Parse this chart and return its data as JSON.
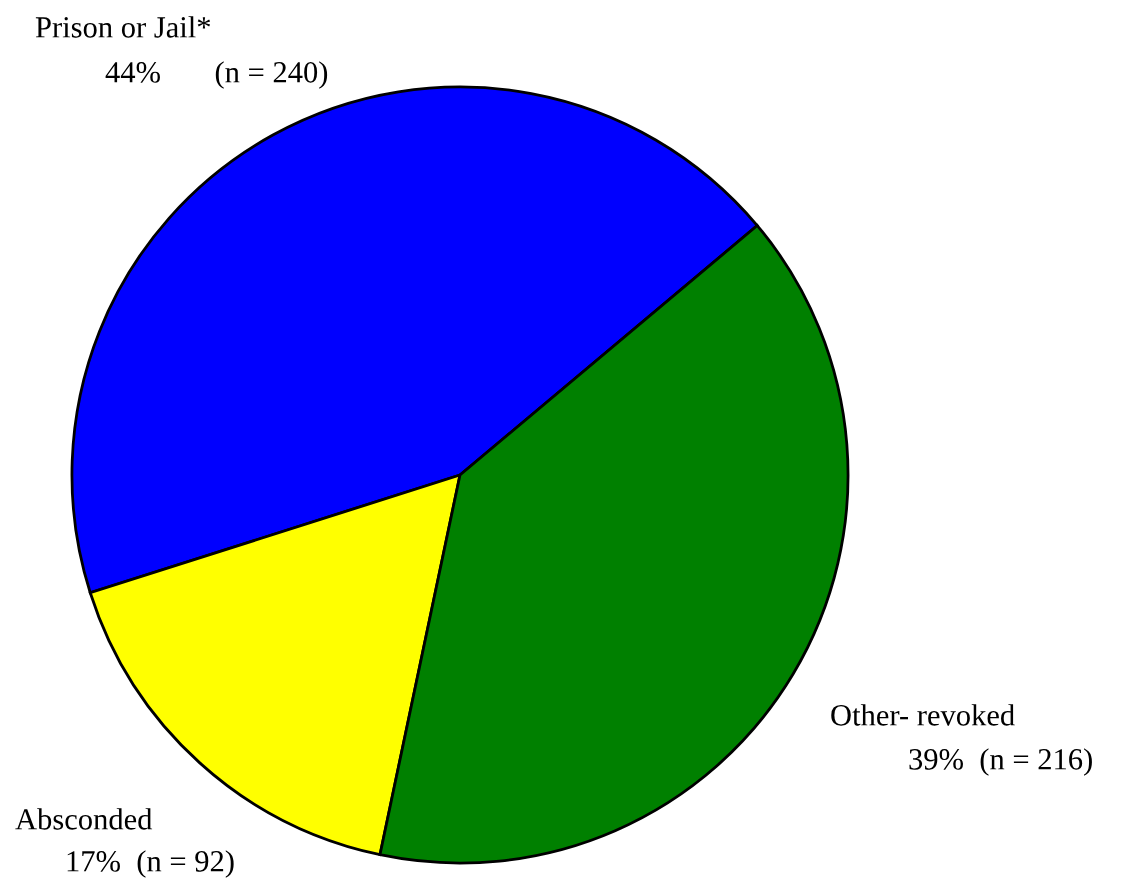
{
  "chart_data": {
    "type": "pie",
    "categories": [
      "Prison or Jail*",
      "Absconded",
      "Other- revoked"
    ],
    "values": [
      240,
      92,
      216
    ],
    "value_labels": [
      "44%       (n = 240)",
      "17%  (n = 92)",
      "39%  (n = 216)"
    ],
    "colors": [
      "#0000ff",
      "#ffff00",
      "#008000"
    ],
    "legend": false
  }
}
